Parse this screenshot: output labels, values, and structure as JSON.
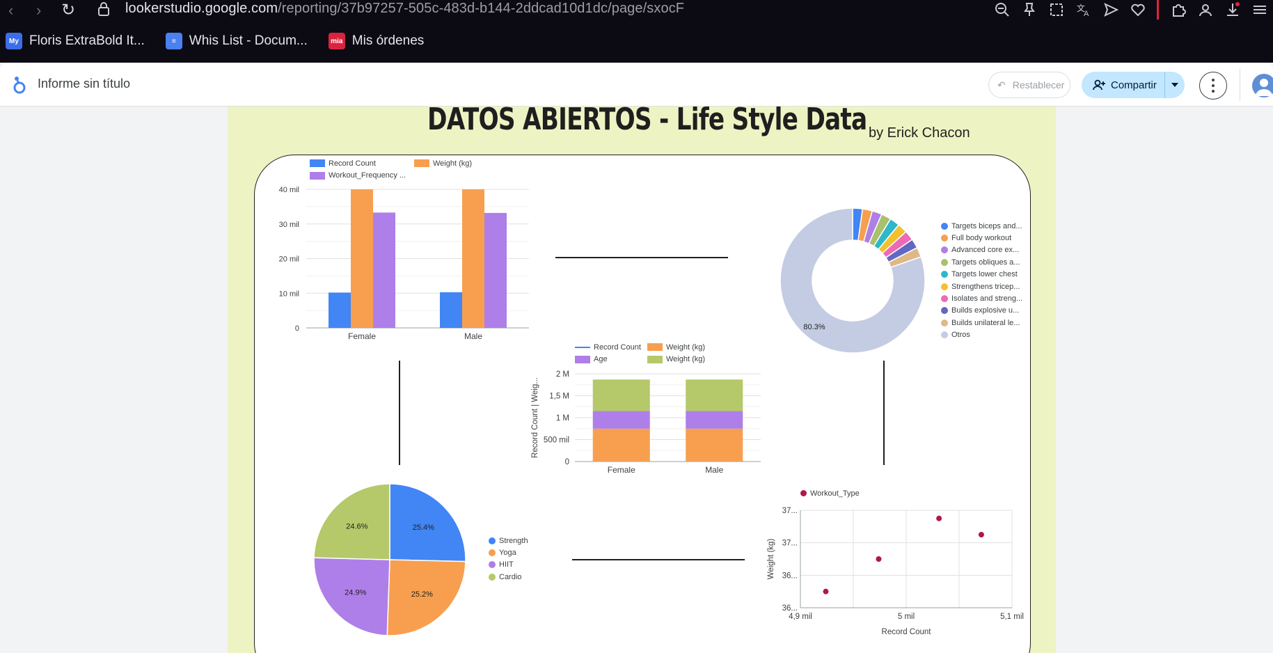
{
  "browser": {
    "url_host": "lookerstudio.google.com",
    "url_path": "/reporting/37b97257-505c-483d-b144-2ddcad10d1dc/page/sxocF",
    "bookmarks": [
      {
        "label": "Floris ExtraBold It...",
        "icon": "mymind-icon",
        "color": "#3b6ee8"
      },
      {
        "label": "Whis List - Docum...",
        "icon": "docs-icon",
        "color": "#4a80ef"
      },
      {
        "label": "Mis órdenes",
        "icon": "mia-icon",
        "color": "#d8243e"
      }
    ]
  },
  "header": {
    "title": "Informe sin título",
    "reset_label": "Restablecer",
    "share_label": "Compartir"
  },
  "report": {
    "title": "DATOS ABIERTOS - Life Style Data",
    "byline": "by Erick Chacon"
  },
  "chart_data": [
    {
      "id": "bar-gender",
      "type": "bar",
      "categories": [
        "Female",
        "Male"
      ],
      "series": [
        {
          "name": "Record Count",
          "values": [
            10200,
            10300
          ],
          "color": "#4285f4"
        },
        {
          "name": "Weight (kg)",
          "values": [
            40000,
            40000
          ],
          "color": "#f79f4f"
        },
        {
          "name": "Workout_Frequency ...",
          "values": [
            33300,
            33200
          ],
          "color": "#ae7fe8"
        }
      ],
      "yticks": [
        "0",
        "10 mil",
        "20 mil",
        "30 mil",
        "40 mil"
      ],
      "ylim": [
        0,
        40000
      ]
    },
    {
      "id": "donut-description",
      "type": "pie",
      "labels": [
        "Targets biceps and...",
        "Full body workout",
        "Advanced core ex...",
        "Targets obliques a...",
        "Targets lower chest",
        "Strengthens tricep...",
        "Isolates and streng...",
        "Builds explosive u...",
        "Builds unilateral le...",
        "Otros"
      ],
      "values": [
        2.2,
        2.2,
        2.2,
        2.2,
        2.2,
        2.2,
        2.2,
        2.1,
        2.2,
        80.3
      ],
      "colors": [
        "#4285f4",
        "#f79f4f",
        "#ae7fe8",
        "#a8c16e",
        "#2db7c9",
        "#f2c12e",
        "#ee6ab5",
        "#6267c2",
        "#dfb888",
        "#c3cce2"
      ],
      "shown_label": "80.3%"
    },
    {
      "id": "stacked-gender",
      "type": "bar",
      "stacked": true,
      "categories": [
        "Female",
        "Male"
      ],
      "series": [
        {
          "name": "Record Count",
          "values": [
            10200,
            10300
          ],
          "color": "#4285f4",
          "marker": "line"
        },
        {
          "name": "Weight (kg)",
          "values": [
            750000,
            750000
          ],
          "color": "#f79f4f",
          "marker": "square"
        },
        {
          "name": "Age",
          "values": [
            400000,
            400000
          ],
          "color": "#ae7fe8",
          "marker": "square"
        },
        {
          "name": "Weight (kg)",
          "values": [
            720000,
            720000
          ],
          "color": "#b5c86a",
          "marker": "square"
        }
      ],
      "ylabel": "Record Count | Weig...",
      "yticks": [
        "0",
        "500 mil",
        "1 M",
        "1,5 M",
        "2 M"
      ],
      "ylim": [
        0,
        2000000
      ]
    },
    {
      "id": "pie-workout",
      "type": "pie",
      "labels": [
        "Strength",
        "Yoga",
        "HIIT",
        "Cardio"
      ],
      "values": [
        25.4,
        25.2,
        24.9,
        24.6
      ],
      "display": [
        "25.4%",
        "25.2%",
        "24.9%",
        "24.6%"
      ],
      "colors": [
        "#4285f4",
        "#f79f4f",
        "#ae7fe8",
        "#b5c86a"
      ]
    },
    {
      "id": "scatter-workout",
      "type": "scatter",
      "series_name": "Workout_Type",
      "color": "#b0164f",
      "x": [
        4924,
        4974,
        5031,
        5071
      ],
      "y": [
        36.2,
        36.6,
        37.1,
        36.9
      ],
      "xlabel": "Record Count",
      "ylabel": "Weight (kg)",
      "xticks": [
        "4,9 mil",
        "5 mil",
        "5,1 mil"
      ],
      "yticks": [
        "36...",
        "36...",
        "37...",
        "37..."
      ],
      "xlim": [
        4900,
        5100
      ],
      "ylim": [
        36.0,
        37.2
      ]
    }
  ]
}
